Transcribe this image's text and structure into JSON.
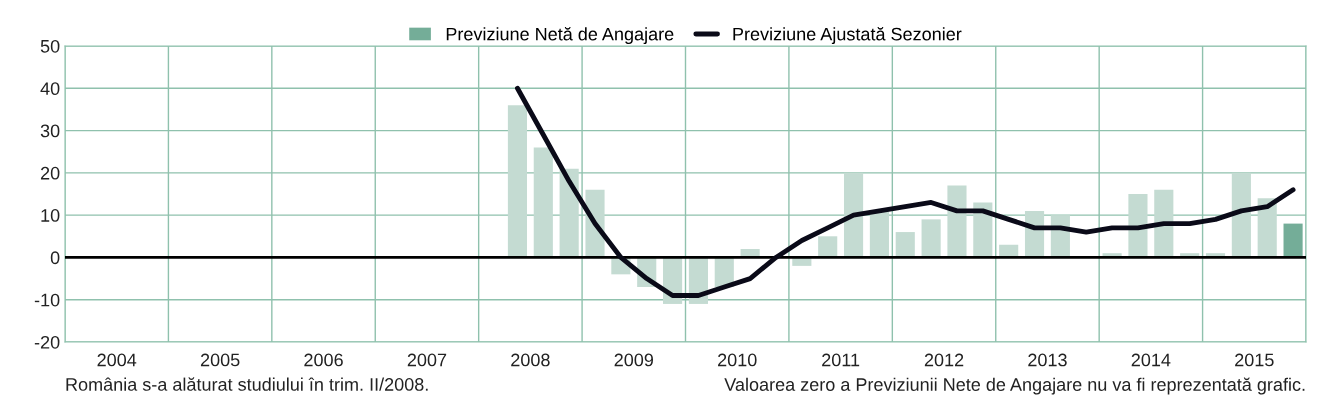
{
  "chart_data": {
    "type": "bar",
    "x": [
      2008.375,
      2008.625,
      2008.875,
      2009.125,
      2009.375,
      2009.625,
      2009.875,
      2010.125,
      2010.375,
      2010.625,
      2010.875,
      2011.125,
      2011.375,
      2011.625,
      2011.875,
      2012.125,
      2012.375,
      2012.625,
      2012.875,
      2013.125,
      2013.375,
      2013.625,
      2013.875,
      2014.125,
      2014.375,
      2014.625,
      2014.875,
      2015.125,
      2015.375,
      2015.625,
      2015.875
    ],
    "series": [
      {
        "name": "Previziune Netă de Angajare",
        "color": "#c4dbd2",
        "colors": [
          "#c4dbd2",
          "#c4dbd2",
          "#c4dbd2",
          "#c4dbd2",
          "#c4dbd2",
          "#c4dbd2",
          "#c4dbd2",
          "#c4dbd2",
          "#c4dbd2",
          "#c4dbd2",
          "#c4dbd2",
          "#c4dbd2",
          "#c4dbd2",
          "#c4dbd2",
          "#c4dbd2",
          "#c4dbd2",
          "#c4dbd2",
          "#c4dbd2",
          "#c4dbd2",
          "#c4dbd2",
          "#c4dbd2",
          "#c4dbd2",
          "#c4dbd2",
          "#c4dbd2",
          "#c4dbd2",
          "#c4dbd2",
          "#c4dbd2",
          "#c4dbd2",
          "#c4dbd2",
          "#c4dbd2",
          "#74ad98"
        ],
        "values": [
          36,
          26,
          21,
          16,
          -4,
          -7,
          -11,
          -11,
          -7,
          2,
          0,
          -2,
          5,
          20,
          11,
          6,
          9,
          17,
          13,
          3,
          11,
          10,
          0,
          1,
          15,
          16,
          1,
          1,
          20,
          14,
          8
        ]
      },
      {
        "name": "Previziune Ajustată Sezonier",
        "type": "line",
        "color": "#0a0a18",
        "values": [
          40,
          29,
          18,
          8,
          0,
          -5,
          -9,
          -9,
          -7,
          -5,
          0,
          4,
          7,
          10,
          11,
          12,
          13,
          11,
          11,
          9,
          7,
          7,
          6,
          7,
          7,
          8,
          8,
          9,
          11,
          12,
          16
        ]
      }
    ],
    "xlim": [
      2004,
      2016
    ],
    "xticks": [
      {
        "value": 2004,
        "label": null
      },
      {
        "value": 2004.5,
        "label": "2004"
      },
      {
        "value": 2005,
        "label": null
      },
      {
        "value": 2005.5,
        "label": "2005"
      },
      {
        "value": 2006,
        "label": null
      },
      {
        "value": 2006.5,
        "label": "2006"
      },
      {
        "value": 2007,
        "label": null
      },
      {
        "value": 2007.5,
        "label": "2007"
      },
      {
        "value": 2008,
        "label": null
      },
      {
        "value": 2008.5,
        "label": "2008"
      },
      {
        "value": 2009,
        "label": null
      },
      {
        "value": 2009.5,
        "label": "2009"
      },
      {
        "value": 2010,
        "label": null
      },
      {
        "value": 2010.5,
        "label": "2010"
      },
      {
        "value": 2011,
        "label": null
      },
      {
        "value": 2011.5,
        "label": "2011"
      },
      {
        "value": 2012,
        "label": null
      },
      {
        "value": 2012.5,
        "label": "2012"
      },
      {
        "value": 2013,
        "label": null
      },
      {
        "value": 2013.5,
        "label": "2013"
      },
      {
        "value": 2014,
        "label": null
      },
      {
        "value": 2014.5,
        "label": "2014"
      },
      {
        "value": 2015,
        "label": null
      },
      {
        "value": 2015.5,
        "label": "2015"
      },
      {
        "value": 2016,
        "label": null
      }
    ],
    "ylim": [
      -20,
      50
    ],
    "yticks": [
      -20,
      -10,
      0,
      10,
      20,
      30,
      40,
      50
    ],
    "grid": true,
    "legend": "top",
    "ref_lines": [
      {
        "axis": "y",
        "value": 0,
        "color": "#000000"
      }
    ],
    "annotations": [
      "România s-a alăturat studiului în trim. II/2008.",
      "Valoarea zero a Previziunii Nete de Angajare nu va fi reprezentată grafic."
    ]
  }
}
